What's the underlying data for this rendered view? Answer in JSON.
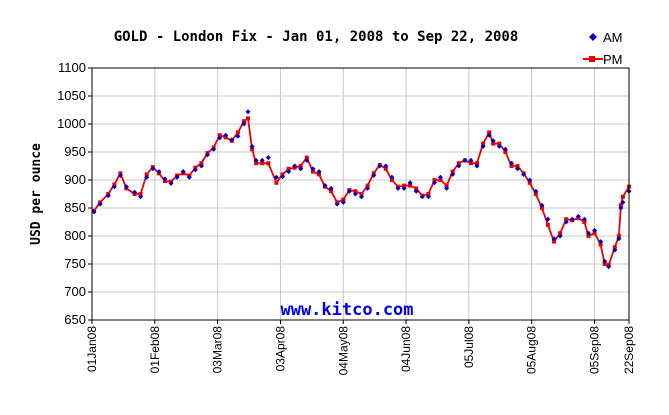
{
  "chart_data": {
    "type": "line",
    "title": "GOLD - London Fix - Jan 01, 2008 to Sep 22, 2008",
    "ylabel": "USD per ounce",
    "xlabel": "",
    "ylim": [
      650,
      1100
    ],
    "yticks": [
      650,
      700,
      750,
      800,
      850,
      900,
      950,
      1000,
      1050,
      1100
    ],
    "x_range": [
      "2008-01-01",
      "2008-09-22"
    ],
    "xticks": [
      {
        "date": "2008-01-01",
        "label": "01Jan08"
      },
      {
        "date": "2008-02-01",
        "label": "01Feb08"
      },
      {
        "date": "2008-03-03",
        "label": "03Mar08"
      },
      {
        "date": "2008-04-03",
        "label": "03Apr08"
      },
      {
        "date": "2008-05-04",
        "label": "04May08"
      },
      {
        "date": "2008-06-04",
        "label": "04Jun08"
      },
      {
        "date": "2008-07-05",
        "label": "05Jul08"
      },
      {
        "date": "2008-08-05",
        "label": "05Aug08"
      },
      {
        "date": "2008-09-05",
        "label": "05Sep08"
      },
      {
        "date": "2008-09-22",
        "label": "22Sep08"
      }
    ],
    "grid": true,
    "legend_position": "top-right",
    "watermark": "www.kitco.com",
    "series": [
      {
        "name": "AM",
        "marker": "diamond",
        "color": "#0000cc",
        "points": [
          [
            "2008-01-02",
            843
          ],
          [
            "2008-01-05",
            857
          ],
          [
            "2008-01-09",
            872
          ],
          [
            "2008-01-12",
            888
          ],
          [
            "2008-01-15",
            908
          ],
          [
            "2008-01-18",
            888
          ],
          [
            "2008-01-22",
            878
          ],
          [
            "2008-01-25",
            870
          ],
          [
            "2008-01-28",
            905
          ],
          [
            "2008-01-31",
            920
          ],
          [
            "2008-02-03",
            915
          ],
          [
            "2008-02-06",
            902
          ],
          [
            "2008-02-09",
            894
          ],
          [
            "2008-02-12",
            905
          ],
          [
            "2008-02-15",
            915
          ],
          [
            "2008-02-18",
            905
          ],
          [
            "2008-02-21",
            918
          ],
          [
            "2008-02-24",
            925
          ],
          [
            "2008-02-27",
            945
          ],
          [
            "2008-03-01",
            955
          ],
          [
            "2008-03-04",
            975
          ],
          [
            "2008-03-07",
            980
          ],
          [
            "2008-03-10",
            972
          ],
          [
            "2008-03-13",
            978
          ],
          [
            "2008-03-16",
            1000
          ],
          [
            "2008-03-18",
            1022
          ],
          [
            "2008-03-20",
            960
          ],
          [
            "2008-03-22",
            935
          ],
          [
            "2008-03-25",
            935
          ],
          [
            "2008-03-28",
            940
          ],
          [
            "2008-04-01",
            905
          ],
          [
            "2008-04-04",
            906
          ],
          [
            "2008-04-07",
            915
          ],
          [
            "2008-04-10",
            925
          ],
          [
            "2008-04-13",
            920
          ],
          [
            "2008-04-16",
            935
          ],
          [
            "2008-04-19",
            920
          ],
          [
            "2008-04-22",
            915
          ],
          [
            "2008-04-25",
            890
          ],
          [
            "2008-04-28",
            885
          ],
          [
            "2008-05-01",
            857
          ],
          [
            "2008-05-04",
            860
          ],
          [
            "2008-05-07",
            880
          ],
          [
            "2008-05-10",
            875
          ],
          [
            "2008-05-13",
            870
          ],
          [
            "2008-05-16",
            885
          ],
          [
            "2008-05-19",
            908
          ],
          [
            "2008-05-22",
            925
          ],
          [
            "2008-05-25",
            925
          ],
          [
            "2008-05-28",
            905
          ],
          [
            "2008-05-31",
            885
          ],
          [
            "2008-06-03",
            885
          ],
          [
            "2008-06-06",
            895
          ],
          [
            "2008-06-09",
            880
          ],
          [
            "2008-06-12",
            870
          ],
          [
            "2008-06-15",
            870
          ],
          [
            "2008-06-18",
            895
          ],
          [
            "2008-06-21",
            905
          ],
          [
            "2008-06-24",
            885
          ],
          [
            "2008-06-27",
            910
          ],
          [
            "2008-06-30",
            925
          ],
          [
            "2008-07-03",
            935
          ],
          [
            "2008-07-06",
            935
          ],
          [
            "2008-07-09",
            925
          ],
          [
            "2008-07-12",
            960
          ],
          [
            "2008-07-15",
            980
          ],
          [
            "2008-07-17",
            970
          ],
          [
            "2008-07-20",
            960
          ],
          [
            "2008-07-23",
            955
          ],
          [
            "2008-07-26",
            930
          ],
          [
            "2008-07-29",
            920
          ],
          [
            "2008-08-01",
            910
          ],
          [
            "2008-08-04",
            900
          ],
          [
            "2008-08-07",
            880
          ],
          [
            "2008-08-10",
            855
          ],
          [
            "2008-08-13",
            830
          ],
          [
            "2008-08-16",
            795
          ],
          [
            "2008-08-19",
            800
          ],
          [
            "2008-08-22",
            825
          ],
          [
            "2008-08-25",
            830
          ],
          [
            "2008-08-28",
            835
          ],
          [
            "2008-08-31",
            830
          ],
          [
            "2008-09-02",
            805
          ],
          [
            "2008-09-05",
            810
          ],
          [
            "2008-09-08",
            790
          ],
          [
            "2008-09-10",
            755
          ],
          [
            "2008-09-12",
            745
          ],
          [
            "2008-09-15",
            775
          ],
          [
            "2008-09-17",
            795
          ],
          [
            "2008-09-18",
            850
          ],
          [
            "2008-09-19",
            860
          ],
          [
            "2008-09-22",
            880
          ]
        ]
      },
      {
        "name": "PM",
        "marker": "square",
        "color": "#ee0000",
        "points": [
          [
            "2008-01-02",
            845
          ],
          [
            "2008-01-05",
            860
          ],
          [
            "2008-01-09",
            875
          ],
          [
            "2008-01-12",
            892
          ],
          [
            "2008-01-15",
            912
          ],
          [
            "2008-01-18",
            885
          ],
          [
            "2008-01-22",
            875
          ],
          [
            "2008-01-25",
            875
          ],
          [
            "2008-01-28",
            910
          ],
          [
            "2008-01-31",
            923
          ],
          [
            "2008-02-03",
            912
          ],
          [
            "2008-02-06",
            898
          ],
          [
            "2008-02-09",
            897
          ],
          [
            "2008-02-12",
            908
          ],
          [
            "2008-02-15",
            912
          ],
          [
            "2008-02-18",
            908
          ],
          [
            "2008-02-21",
            922
          ],
          [
            "2008-02-24",
            930
          ],
          [
            "2008-02-27",
            948
          ],
          [
            "2008-03-01",
            958
          ],
          [
            "2008-03-04",
            980
          ],
          [
            "2008-03-07",
            976
          ],
          [
            "2008-03-10",
            970
          ],
          [
            "2008-03-13",
            985
          ],
          [
            "2008-03-16",
            1005
          ],
          [
            "2008-03-18",
            1010
          ],
          [
            "2008-03-20",
            955
          ],
          [
            "2008-03-22",
            930
          ],
          [
            "2008-03-25",
            930
          ],
          [
            "2008-03-28",
            930
          ],
          [
            "2008-04-01",
            895
          ],
          [
            "2008-04-04",
            910
          ],
          [
            "2008-04-07",
            920
          ],
          [
            "2008-04-10",
            922
          ],
          [
            "2008-04-13",
            925
          ],
          [
            "2008-04-16",
            940
          ],
          [
            "2008-04-19",
            915
          ],
          [
            "2008-04-22",
            910
          ],
          [
            "2008-04-25",
            888
          ],
          [
            "2008-04-28",
            880
          ],
          [
            "2008-05-01",
            860
          ],
          [
            "2008-05-04",
            865
          ],
          [
            "2008-05-07",
            882
          ],
          [
            "2008-05-10",
            880
          ],
          [
            "2008-05-13",
            875
          ],
          [
            "2008-05-16",
            890
          ],
          [
            "2008-05-19",
            912
          ],
          [
            "2008-05-22",
            927
          ],
          [
            "2008-05-25",
            920
          ],
          [
            "2008-05-28",
            900
          ],
          [
            "2008-05-31",
            888
          ],
          [
            "2008-06-03",
            890
          ],
          [
            "2008-06-06",
            890
          ],
          [
            "2008-06-09",
            885
          ],
          [
            "2008-06-12",
            872
          ],
          [
            "2008-06-15",
            875
          ],
          [
            "2008-06-18",
            900
          ],
          [
            "2008-06-21",
            900
          ],
          [
            "2008-06-24",
            890
          ],
          [
            "2008-06-27",
            915
          ],
          [
            "2008-06-30",
            930
          ],
          [
            "2008-07-03",
            935
          ],
          [
            "2008-07-06",
            930
          ],
          [
            "2008-07-09",
            930
          ],
          [
            "2008-07-12",
            965
          ],
          [
            "2008-07-15",
            985
          ],
          [
            "2008-07-17",
            965
          ],
          [
            "2008-07-20",
            965
          ],
          [
            "2008-07-23",
            950
          ],
          [
            "2008-07-26",
            925
          ],
          [
            "2008-07-29",
            925
          ],
          [
            "2008-08-01",
            912
          ],
          [
            "2008-08-04",
            895
          ],
          [
            "2008-08-07",
            875
          ],
          [
            "2008-08-10",
            850
          ],
          [
            "2008-08-13",
            820
          ],
          [
            "2008-08-16",
            790
          ],
          [
            "2008-08-19",
            805
          ],
          [
            "2008-08-22",
            830
          ],
          [
            "2008-08-25",
            828
          ],
          [
            "2008-08-28",
            832
          ],
          [
            "2008-08-31",
            825
          ],
          [
            "2008-09-02",
            800
          ],
          [
            "2008-09-05",
            805
          ],
          [
            "2008-09-08",
            785
          ],
          [
            "2008-09-10",
            750
          ],
          [
            "2008-09-12",
            748
          ],
          [
            "2008-09-15",
            780
          ],
          [
            "2008-09-17",
            800
          ],
          [
            "2008-09-18",
            855
          ],
          [
            "2008-09-19",
            870
          ],
          [
            "2008-09-22",
            888
          ]
        ]
      }
    ]
  }
}
